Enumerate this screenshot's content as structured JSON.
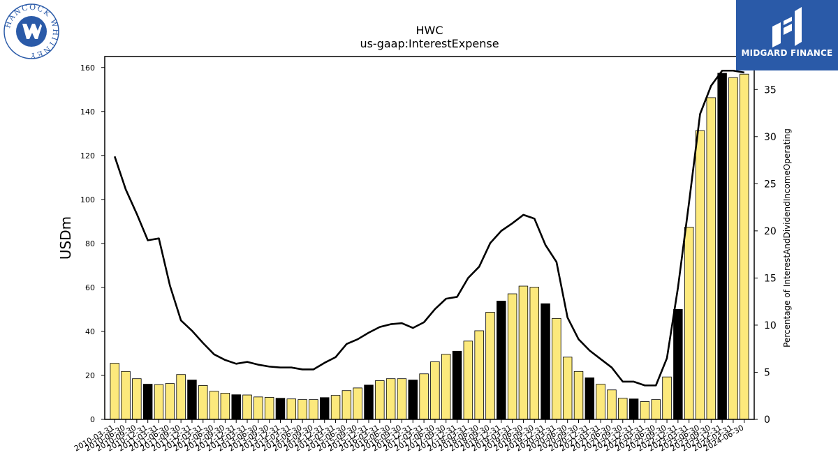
{
  "logos": {
    "left_text": "HANCOCK WHITNEY",
    "right_text": "MIDGARD FINANCE"
  },
  "colors": {
    "bar_yellow": "#fce97c",
    "bar_black": "#000000",
    "line": "#000000",
    "brand_blue": "#2a5aa8"
  },
  "chart_data": {
    "type": "bar+line",
    "title": "HWC",
    "subtitle": "us-gaap:InterestExpense",
    "ylabel": "USDm",
    "y2label": "Percentage of InterestAndDividendIncomeOperating",
    "ylim": [
      0,
      165
    ],
    "y2lim": [
      0,
      38.5
    ],
    "yticks": [
      0,
      20,
      40,
      60,
      80,
      100,
      120,
      140,
      160
    ],
    "y2ticks": [
      0,
      5,
      10,
      15,
      20,
      25,
      30,
      35
    ],
    "grid": false,
    "categories": [
      "2010-03-31",
      "2010-06-30",
      "2010-09-30",
      "2010-12-31",
      "2011-03-31",
      "2011-06-30",
      "2011-09-30",
      "2011-12-31",
      "2012-03-31",
      "2012-06-30",
      "2012-09-30",
      "2012-12-31",
      "2013-03-31",
      "2013-06-30",
      "2013-09-30",
      "2013-12-31",
      "2014-03-31",
      "2014-06-30",
      "2014-09-30",
      "2014-12-31",
      "2015-03-31",
      "2015-06-30",
      "2015-09-30",
      "2015-12-31",
      "2016-03-31",
      "2016-06-30",
      "2016-09-30",
      "2016-12-31",
      "2017-03-31",
      "2017-06-30",
      "2017-09-30",
      "2017-12-31",
      "2018-03-31",
      "2018-06-30",
      "2018-09-30",
      "2018-12-31",
      "2019-03-31",
      "2019-06-30",
      "2019-09-30",
      "2019-12-31",
      "2020-03-31",
      "2020-06-30",
      "2020-09-30",
      "2020-12-31",
      "2021-03-31",
      "2021-06-30",
      "2021-09-30",
      "2021-12-31",
      "2022-03-31",
      "2022-06-30",
      "2022-09-30",
      "2022-12-31",
      "2023-03-31",
      "2023-06-30",
      "2023-09-30",
      "2023-12-31",
      "2024-03-31",
      "2024-06-30"
    ],
    "bar_values": [
      25.5,
      21.8,
      18.5,
      16.0,
      15.8,
      16.3,
      20.4,
      17.9,
      15.4,
      12.8,
      11.9,
      11.2,
      11.1,
      10.2,
      10.0,
      9.6,
      9.3,
      9.0,
      9.0,
      9.9,
      10.9,
      13.1,
      14.3,
      15.6,
      17.6,
      18.5,
      18.5,
      17.9,
      20.7,
      26.2,
      29.6,
      31.0,
      35.6,
      40.3,
      48.7,
      53.8,
      57.1,
      60.6,
      60.1,
      52.6,
      45.9,
      28.3,
      21.8,
      18.9,
      16.0,
      13.4,
      9.6,
      9.3,
      8.1,
      9.0,
      19.3,
      50.0,
      87.4,
      131.3,
      146.3,
      157.4,
      155.4,
      157.0
    ],
    "bar_highlight": [
      false,
      false,
      false,
      true,
      false,
      false,
      false,
      true,
      false,
      false,
      false,
      true,
      false,
      false,
      false,
      true,
      false,
      false,
      false,
      true,
      false,
      false,
      false,
      true,
      false,
      false,
      false,
      true,
      false,
      false,
      false,
      true,
      false,
      false,
      false,
      true,
      false,
      false,
      false,
      true,
      false,
      false,
      false,
      true,
      false,
      false,
      false,
      true,
      false,
      false,
      false,
      true,
      false,
      false,
      false,
      true,
      false,
      false
    ],
    "line_values": [
      27.9,
      24.4,
      21.8,
      19.0,
      19.2,
      14.2,
      10.5,
      9.4,
      8.1,
      6.9,
      6.3,
      5.9,
      6.1,
      5.8,
      5.6,
      5.5,
      5.5,
      5.3,
      5.3,
      6.0,
      6.6,
      8.0,
      8.5,
      9.2,
      9.8,
      10.1,
      10.2,
      9.7,
      10.3,
      11.7,
      12.8,
      13.0,
      15.0,
      16.2,
      18.7,
      20.0,
      20.8,
      21.7,
      21.3,
      18.5,
      16.7,
      10.8,
      8.5,
      7.3,
      6.4,
      5.5,
      4.0,
      4.0,
      3.6,
      3.6,
      6.5,
      14.0,
      23.0,
      32.4,
      35.4,
      37.0,
      37.0,
      36.8
    ]
  }
}
